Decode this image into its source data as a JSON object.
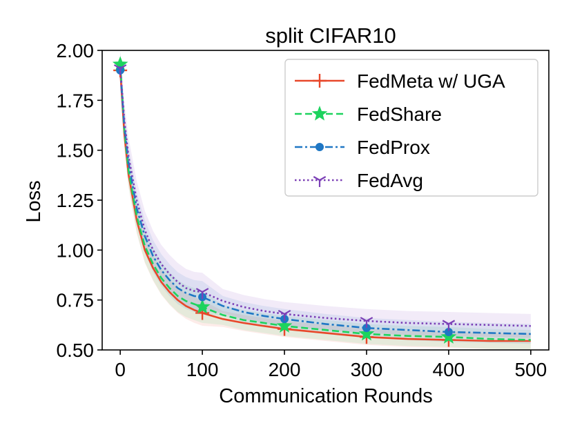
{
  "chart_data": {
    "type": "line",
    "title": "split CIFAR10",
    "xlabel": "Communication Rounds",
    "ylabel": "Loss",
    "xlim": [
      -22,
      522
    ],
    "ylim": [
      0.5,
      2.0
    ],
    "xticks": [
      0,
      100,
      200,
      300,
      400,
      500
    ],
    "yticks": [
      0.5,
      0.75,
      1.0,
      1.25,
      1.5,
      1.75,
      2.0
    ],
    "xtick_labels": [
      "0",
      "100",
      "200",
      "300",
      "400",
      "500"
    ],
    "ytick_labels": [
      "0.50",
      "0.75",
      "1.00",
      "1.25",
      "1.50",
      "1.75",
      "2.00"
    ],
    "grid": false,
    "legend_position": "top-right",
    "marker_x": [
      0,
      100,
      200,
      300,
      400
    ],
    "series": [
      {
        "name": "FedMeta w/ UGA",
        "color": "#e8472a",
        "dash": "solid",
        "marker": "plus",
        "x": [
          0,
          5,
          10,
          20,
          30,
          40,
          50,
          60,
          70,
          80,
          90,
          100,
          125,
          150,
          175,
          200,
          250,
          300,
          350,
          400,
          450,
          500
        ],
        "y": [
          1.9,
          1.58,
          1.38,
          1.15,
          1.0,
          0.91,
          0.84,
          0.79,
          0.75,
          0.72,
          0.7,
          0.685,
          0.655,
          0.635,
          0.62,
          0.605,
          0.585,
          0.565,
          0.555,
          0.55,
          0.545,
          0.545
        ],
        "band": 0.04
      },
      {
        "name": "FedShare",
        "color": "#1dd35e",
        "dash": "dashed",
        "marker": "star",
        "x": [
          0,
          5,
          10,
          20,
          30,
          40,
          50,
          60,
          70,
          80,
          90,
          100,
          125,
          150,
          175,
          200,
          250,
          300,
          350,
          400,
          450,
          500
        ],
        "y": [
          1.93,
          1.6,
          1.4,
          1.17,
          1.02,
          0.93,
          0.86,
          0.81,
          0.77,
          0.745,
          0.73,
          0.715,
          0.675,
          0.65,
          0.635,
          0.62,
          0.6,
          0.58,
          0.57,
          0.565,
          0.555,
          0.55
        ],
        "band": 0.05
      },
      {
        "name": "FedProx",
        "color": "#1f77c4",
        "dash": "dashdot",
        "marker": "circle",
        "x": [
          0,
          5,
          10,
          20,
          30,
          40,
          50,
          60,
          70,
          80,
          90,
          100,
          125,
          150,
          175,
          200,
          250,
          300,
          350,
          400,
          450,
          500
        ],
        "y": [
          1.9,
          1.62,
          1.44,
          1.21,
          1.07,
          0.97,
          0.9,
          0.85,
          0.81,
          0.785,
          0.77,
          0.765,
          0.72,
          0.69,
          0.67,
          0.655,
          0.63,
          0.61,
          0.6,
          0.59,
          0.585,
          0.58
        ],
        "band": 0.05
      },
      {
        "name": "FedAvg",
        "color": "#7b3fb6",
        "dash": "dotted",
        "marker": "tri",
        "x": [
          0,
          5,
          10,
          20,
          30,
          40,
          50,
          60,
          70,
          80,
          90,
          100,
          125,
          150,
          175,
          200,
          250,
          300,
          350,
          400,
          450,
          500
        ],
        "y": [
          1.91,
          1.65,
          1.47,
          1.25,
          1.1,
          1.0,
          0.93,
          0.88,
          0.84,
          0.81,
          0.795,
          0.79,
          0.745,
          0.715,
          0.695,
          0.68,
          0.66,
          0.645,
          0.635,
          0.63,
          0.625,
          0.62
        ],
        "band": 0.06
      }
    ]
  }
}
